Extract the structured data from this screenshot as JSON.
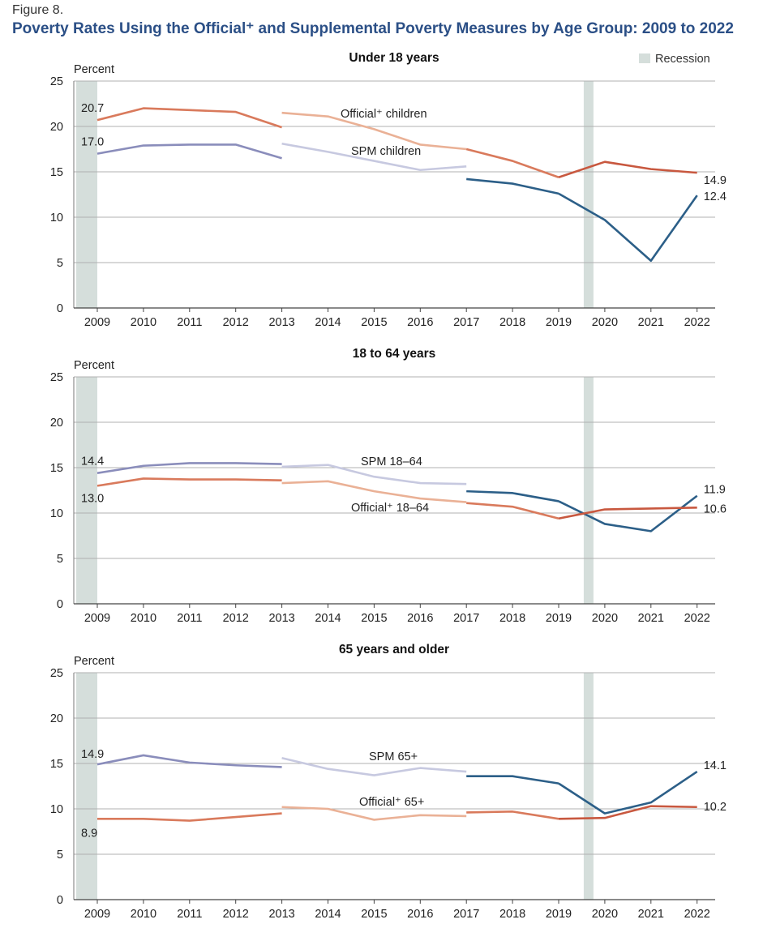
{
  "figure": {
    "label": "Figure 8.",
    "title": "Poverty Rates Using the Official⁺ and Supplemental Poverty Measures by Age Group: 2009 to 2022"
  },
  "legend": {
    "recession_label": "Recession",
    "recession_color": "#d5dedb"
  },
  "colors": {
    "official_early": "#d97a5c",
    "official_mid": "#eab196",
    "official_late": "#c8583f",
    "spm_early": "#8a8dbb",
    "spm_mid": "#c7c9e0",
    "spm_late": "#2c5f88",
    "grid": "#b0b0b0"
  },
  "chart_data": [
    {
      "type": "line",
      "title": "Under 18 years",
      "ylabel": "Percent",
      "xlabel": "",
      "ylim": [
        0,
        25
      ],
      "yticks": [
        0,
        5,
        10,
        15,
        20,
        25
      ],
      "x": [
        2009,
        2010,
        2011,
        2012,
        2013,
        2014,
        2015,
        2016,
        2017,
        2018,
        2019,
        2020,
        2021,
        2022
      ],
      "recessions": [
        2009,
        2020
      ],
      "grid": true,
      "series": [
        {
          "name": "Official⁺ children",
          "measure": "official",
          "segments": [
            {
              "x": [
                2009,
                2010,
                2011,
                2012,
                2013
              ],
              "y": [
                20.7,
                22.0,
                21.8,
                21.6,
                19.9
              ]
            },
            {
              "x": [
                2013,
                2014,
                2015,
                2016,
                2017
              ],
              "y": [
                21.5,
                21.1,
                19.7,
                18.0,
                17.5
              ]
            },
            {
              "x": [
                2017,
                2018,
                2019
              ],
              "y": [
                17.5,
                16.2,
                14.4
              ]
            },
            {
              "x": [
                2019,
                2020,
                2021,
                2022
              ],
              "y": [
                14.4,
                16.1,
                15.3,
                14.9
              ]
            }
          ]
        },
        {
          "name": "SPM children",
          "measure": "spm",
          "segments": [
            {
              "x": [
                2009,
                2010,
                2011,
                2012,
                2013
              ],
              "y": [
                17.0,
                17.9,
                18.0,
                18.0,
                16.5
              ]
            },
            {
              "x": [
                2013,
                2014,
                2015,
                2016,
                2017
              ],
              "y": [
                18.1,
                17.2,
                16.2,
                15.2,
                15.6
              ]
            },
            {
              "x": [
                2017,
                2018,
                2019
              ],
              "y": [
                14.2,
                13.7,
                12.6
              ]
            },
            {
              "x": [
                2019,
                2020,
                2021,
                2022
              ],
              "y": [
                12.6,
                9.7,
                5.2,
                12.4
              ]
            }
          ]
        }
      ],
      "data_labels": [
        {
          "series": "Official⁺ children",
          "x": 2009,
          "text": "20.7"
        },
        {
          "series": "SPM children",
          "x": 2009,
          "text": "17.0"
        },
        {
          "series": "Official⁺ children",
          "x": 2022,
          "text": "14.9"
        },
        {
          "series": "SPM children",
          "x": 2022,
          "text": "12.4"
        }
      ]
    },
    {
      "type": "line",
      "title": "18 to 64 years",
      "ylabel": "Percent",
      "xlabel": "",
      "ylim": [
        0,
        25
      ],
      "yticks": [
        0,
        5,
        10,
        15,
        20,
        25
      ],
      "x": [
        2009,
        2010,
        2011,
        2012,
        2013,
        2014,
        2015,
        2016,
        2017,
        2018,
        2019,
        2020,
        2021,
        2022
      ],
      "recessions": [
        2009,
        2020
      ],
      "grid": true,
      "series": [
        {
          "name": "SPM 18–64",
          "measure": "spm",
          "segments": [
            {
              "x": [
                2009,
                2010,
                2011,
                2012,
                2013
              ],
              "y": [
                14.4,
                15.2,
                15.5,
                15.5,
                15.4
              ]
            },
            {
              "x": [
                2013,
                2014,
                2015,
                2016,
                2017
              ],
              "y": [
                15.1,
                15.3,
                14.0,
                13.3,
                13.2
              ]
            },
            {
              "x": [
                2017,
                2018,
                2019
              ],
              "y": [
                12.4,
                12.2,
                11.3
              ]
            },
            {
              "x": [
                2019,
                2020,
                2021,
                2022
              ],
              "y": [
                11.3,
                8.8,
                8.0,
                11.9
              ]
            }
          ]
        },
        {
          "name": "Official⁺ 18–64",
          "measure": "official",
          "segments": [
            {
              "x": [
                2009,
                2010,
                2011,
                2012,
                2013
              ],
              "y": [
                13.0,
                13.8,
                13.7,
                13.7,
                13.6
              ]
            },
            {
              "x": [
                2013,
                2014,
                2015,
                2016,
                2017
              ],
              "y": [
                13.3,
                13.5,
                12.4,
                11.6,
                11.2
              ]
            },
            {
              "x": [
                2017,
                2018,
                2019
              ],
              "y": [
                11.1,
                10.7,
                9.4
              ]
            },
            {
              "x": [
                2019,
                2020,
                2021,
                2022
              ],
              "y": [
                9.4,
                10.4,
                10.5,
                10.6
              ]
            }
          ]
        }
      ],
      "data_labels": [
        {
          "series": "SPM 18–64",
          "x": 2009,
          "text": "14.4"
        },
        {
          "series": "Official⁺ 18–64",
          "x": 2009,
          "text": "13.0"
        },
        {
          "series": "SPM 18–64",
          "x": 2022,
          "text": "11.9"
        },
        {
          "series": "Official⁺ 18–64",
          "x": 2022,
          "text": "10.6"
        }
      ]
    },
    {
      "type": "line",
      "title": "65 years and older",
      "ylabel": "Percent",
      "xlabel": "",
      "ylim": [
        0,
        25
      ],
      "yticks": [
        0,
        5,
        10,
        15,
        20,
        25
      ],
      "x": [
        2009,
        2010,
        2011,
        2012,
        2013,
        2014,
        2015,
        2016,
        2017,
        2018,
        2019,
        2020,
        2021,
        2022
      ],
      "recessions": [
        2009,
        2020
      ],
      "grid": true,
      "series": [
        {
          "name": "SPM 65+",
          "measure": "spm",
          "segments": [
            {
              "x": [
                2009,
                2010,
                2011,
                2012,
                2013
              ],
              "y": [
                14.9,
                15.9,
                15.1,
                14.8,
                14.6
              ]
            },
            {
              "x": [
                2013,
                2014,
                2015,
                2016,
                2017
              ],
              "y": [
                15.6,
                14.4,
                13.7,
                14.5,
                14.1
              ]
            },
            {
              "x": [
                2017,
                2018,
                2019
              ],
              "y": [
                13.6,
                13.6,
                12.8
              ]
            },
            {
              "x": [
                2019,
                2020,
                2021,
                2022
              ],
              "y": [
                12.8,
                9.5,
                10.7,
                14.1
              ]
            }
          ]
        },
        {
          "name": "Official⁺ 65+",
          "measure": "official",
          "segments": [
            {
              "x": [
                2009,
                2010,
                2011,
                2012,
                2013
              ],
              "y": [
                8.9,
                8.9,
                8.7,
                9.1,
                9.5
              ]
            },
            {
              "x": [
                2013,
                2014,
                2015,
                2016,
                2017
              ],
              "y": [
                10.2,
                10.0,
                8.8,
                9.3,
                9.2
              ]
            },
            {
              "x": [
                2017,
                2018,
                2019
              ],
              "y": [
                9.6,
                9.7,
                8.9
              ]
            },
            {
              "x": [
                2019,
                2020,
                2021,
                2022
              ],
              "y": [
                8.9,
                9.0,
                10.3,
                10.2
              ]
            }
          ]
        }
      ],
      "data_labels": [
        {
          "series": "SPM 65+",
          "x": 2009,
          "text": "14.9"
        },
        {
          "series": "Official⁺ 65+",
          "x": 2009,
          "text": "8.9"
        },
        {
          "series": "SPM 65+",
          "x": 2022,
          "text": "14.1"
        },
        {
          "series": "Official⁺ 65+",
          "x": 2022,
          "text": "10.2"
        }
      ]
    }
  ]
}
